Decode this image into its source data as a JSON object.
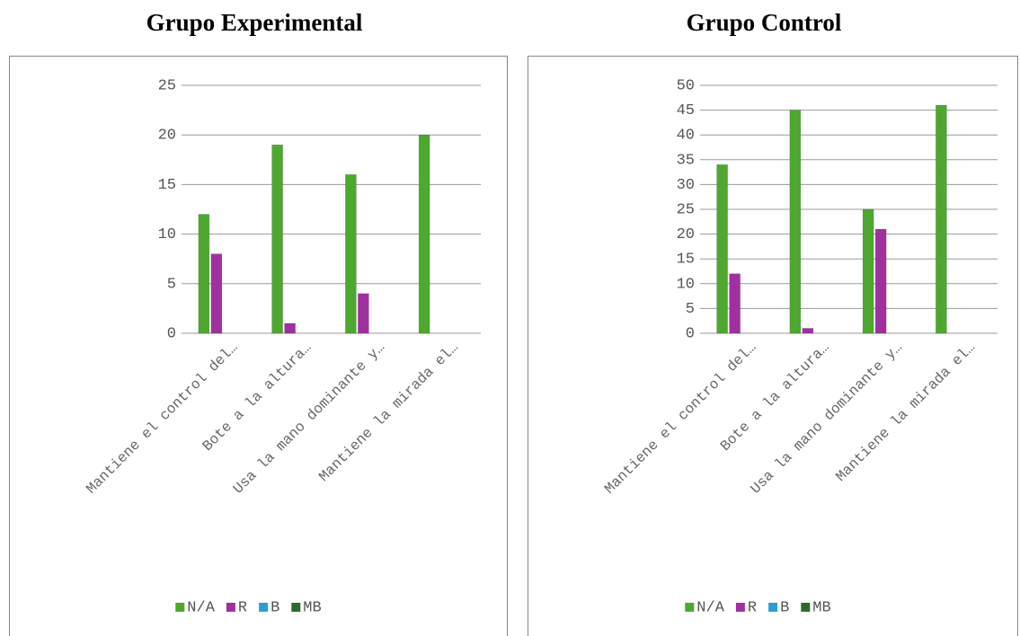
{
  "chart_data": [
    {
      "type": "bar",
      "title": "Grupo Experimental",
      "categories": [
        "Mantiene el control del…",
        "Bote a la altura…",
        "Usa la mano dominante y…",
        "Mantiene la mirada el…"
      ],
      "series": [
        {
          "name": "N/A",
          "color": "#4ea82f",
          "values": [
            12,
            19,
            16,
            20
          ]
        },
        {
          "name": "R",
          "color": "#a0309e",
          "values": [
            8,
            1,
            4,
            0
          ]
        },
        {
          "name": "B",
          "color": "#2b9fd3",
          "values": [
            0,
            0,
            0,
            0
          ]
        },
        {
          "name": "MB",
          "color": "#2e6b2a",
          "values": [
            0,
            0,
            0,
            0
          ]
        }
      ],
      "ylim": [
        0,
        25
      ],
      "yticks": [
        0,
        5,
        10,
        15,
        20,
        25
      ],
      "grid": true,
      "legend": "bottom"
    },
    {
      "type": "bar",
      "title": "Grupo Control",
      "categories": [
        "Mantiene el control del…",
        "Bote a la altura…",
        "Usa la mano dominante y…",
        "Mantiene la mirada el…"
      ],
      "series": [
        {
          "name": "N/A",
          "color": "#4ea82f",
          "values": [
            34,
            45,
            25,
            46
          ]
        },
        {
          "name": "R",
          "color": "#a0309e",
          "values": [
            12,
            1,
            21,
            0
          ]
        },
        {
          "name": "B",
          "color": "#2b9fd3",
          "values": [
            0,
            0,
            0,
            0
          ]
        },
        {
          "name": "MB",
          "color": "#2e6b2a",
          "values": [
            0,
            0,
            0,
            0
          ]
        }
      ],
      "ylim": [
        0,
        50
      ],
      "yticks": [
        0,
        5,
        10,
        15,
        20,
        25,
        30,
        35,
        40,
        45,
        50
      ],
      "grid": true,
      "legend": "bottom"
    }
  ]
}
